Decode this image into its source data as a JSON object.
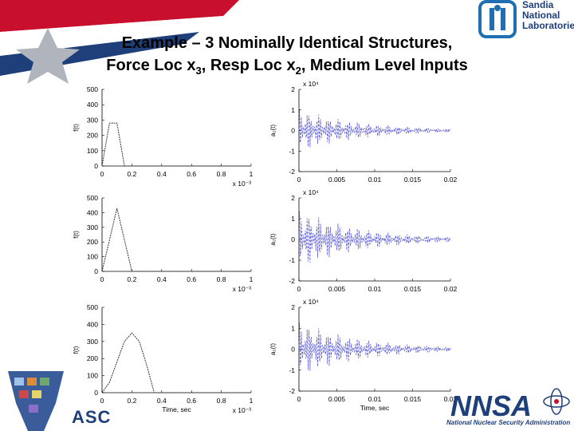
{
  "slide": {
    "title_parts": [
      "Example – 3 Nominally Identical Structures,",
      "Force Loc x",
      "3",
      ", Resp Loc x",
      "2",
      ", Medium Level Inputs"
    ],
    "logo_lines": [
      "Sandia",
      "National",
      "Laboratories"
    ],
    "nnsa_label": "NNSA",
    "nnsa_subtitle": "National Nuclear Security Administration",
    "asc_label": "ASC"
  },
  "chart_data": [
    {
      "type": "line",
      "ylabel": "f(t)",
      "xlabel": "",
      "x_multiplier": "x 10⁻³",
      "x": [
        0,
        0.05,
        0.1,
        0.15,
        1
      ],
      "y": [
        0,
        280,
        280,
        0,
        0
      ],
      "xlim": [
        0,
        1
      ],
      "ylim": [
        0,
        500
      ],
      "xticks": [
        "0",
        "0.2",
        "0.4",
        "0.6",
        "0.8",
        "1"
      ],
      "yticks": [
        "0",
        "100",
        "200",
        "300",
        "400",
        "500"
      ]
    },
    {
      "type": "line",
      "ylabel": "a₂(t)",
      "xlabel": "",
      "y_multiplier": "x 10⁴",
      "xlim": [
        0,
        0.02
      ],
      "ylim": [
        -2,
        2
      ],
      "xticks": [
        "0",
        "0.005",
        "0.01",
        "0.015",
        "0.02"
      ],
      "yticks": [
        "-2",
        "-1",
        "0",
        "1",
        "2"
      ],
      "decay_peak": 1.1
    },
    {
      "type": "line",
      "ylabel": "f(t)",
      "xlabel": "",
      "x_multiplier": "x 10⁻³",
      "x": [
        0,
        0.1,
        0.2,
        1
      ],
      "y": [
        0,
        430,
        0,
        0
      ],
      "xlim": [
        0,
        1
      ],
      "ylim": [
        0,
        500
      ],
      "xticks": [
        "0",
        "0.2",
        "0.4",
        "0.6",
        "0.8",
        "1"
      ],
      "yticks": [
        "0",
        "100",
        "200",
        "300",
        "400",
        "500"
      ]
    },
    {
      "type": "line",
      "ylabel": "a₂(t)",
      "xlabel": "",
      "y_multiplier": "x 10⁴",
      "xlim": [
        0,
        0.02
      ],
      "ylim": [
        -2,
        2
      ],
      "xticks": [
        "0",
        "0.005",
        "0.01",
        "0.015",
        "0.02"
      ],
      "yticks": [
        "-2",
        "-1",
        "0",
        "1",
        "2"
      ],
      "decay_peak": 1.5
    },
    {
      "type": "line",
      "ylabel": "f(t)",
      "xlabel": "Time, sec",
      "x_multiplier": "x 10⁻³",
      "x": [
        0,
        0.05,
        0.1,
        0.15,
        0.2,
        0.25,
        0.3,
        0.35,
        1
      ],
      "y": [
        0,
        60,
        180,
        300,
        350,
        300,
        160,
        0,
        0
      ],
      "xlim": [
        0,
        1
      ],
      "ylim": [
        0,
        500
      ],
      "xticks": [
        "0",
        "0.2",
        "0.4",
        "0.6",
        "0.8",
        "1"
      ],
      "yticks": [
        "0",
        "100",
        "200",
        "300",
        "400",
        "500"
      ]
    },
    {
      "type": "line",
      "ylabel": "a₂(t)",
      "xlabel": "Time, sec",
      "y_multiplier": "x 10⁴",
      "xlim": [
        0,
        0.02
      ],
      "ylim": [
        -2,
        2
      ],
      "xticks": [
        "0",
        "0.005",
        "0.01",
        "0.015",
        "0.02"
      ],
      "yticks": [
        "-2",
        "-1",
        "0",
        "1",
        "2"
      ],
      "decay_peak": 1.4
    }
  ]
}
